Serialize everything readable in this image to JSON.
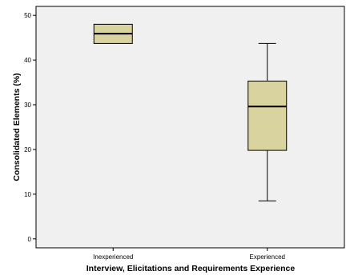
{
  "chart_data": {
    "type": "boxplot",
    "xlabel": "Interview, Elicitations and Requirements Experience",
    "ylabel": "Consolidated Elements (%)",
    "ylim": [
      -2,
      52
    ],
    "yticks": [
      0,
      10,
      20,
      30,
      40,
      50
    ],
    "grid": false,
    "categories": [
      "Inexperienced",
      "Experienced"
    ],
    "boxes": [
      {
        "name": "Inexperienced",
        "min": 43.7,
        "q1": 43.7,
        "median": 45.9,
        "q3": 48.0,
        "max": 48.0
      },
      {
        "name": "Experienced",
        "min": 8.5,
        "q1": 19.8,
        "median": 29.6,
        "q3": 35.3,
        "max": 43.7
      }
    ],
    "colors": {
      "box_fill": "#d9d3a0",
      "plot_bg": "#f0f0f0",
      "stroke": "#000000"
    }
  }
}
